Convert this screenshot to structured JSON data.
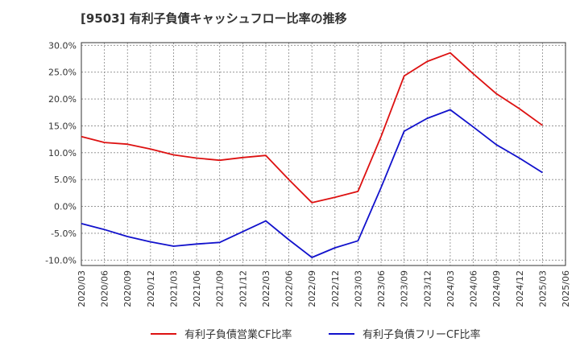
{
  "chart_data": {
    "type": "line",
    "title": "[9503]  有利子負債キャッシュフロー比率の推移",
    "xlabel": "",
    "ylabel": "",
    "ylim": [
      -11,
      30.5
    ],
    "y_ticks": [
      -10,
      -5,
      0,
      5,
      10,
      15,
      20,
      25,
      30
    ],
    "y_tick_labels": [
      "-10.0%",
      "-5.0%",
      "0.0%",
      "5.0%",
      "10.0%",
      "15.0%",
      "20.0%",
      "25.0%",
      "30.0%"
    ],
    "categories": [
      "2020/03",
      "2020/06",
      "2020/09",
      "2020/12",
      "2021/03",
      "2021/06",
      "2021/09",
      "2021/12",
      "2022/03",
      "2022/06",
      "2022/09",
      "2022/12",
      "2023/03",
      "2023/06",
      "2023/09",
      "2023/12",
      "2024/03",
      "2024/06",
      "2024/09",
      "2024/12",
      "2025/03",
      "2025/06"
    ],
    "grid": true,
    "legend_position": "bottom",
    "series": [
      {
        "name": "有利子負債営業CF比率",
        "color": "#dd1111",
        "values": [
          13.0,
          11.9,
          11.6,
          10.7,
          9.6,
          9.0,
          8.6,
          9.1,
          9.5,
          5.0,
          0.7,
          1.7,
          2.8,
          13.0,
          24.3,
          27.0,
          28.6,
          24.7,
          21.0,
          18.2,
          15.1,
          null
        ]
      },
      {
        "name": "有利子負債フリーCF比率",
        "color": "#1111cc",
        "values": [
          -3.2,
          -4.3,
          -5.6,
          -6.6,
          -7.4,
          -7.0,
          -6.7,
          -4.7,
          -2.7,
          -6.2,
          -9.5,
          -7.7,
          -6.4,
          3.5,
          14.0,
          16.4,
          18.0,
          14.8,
          11.5,
          9.0,
          6.3,
          null
        ]
      }
    ]
  }
}
